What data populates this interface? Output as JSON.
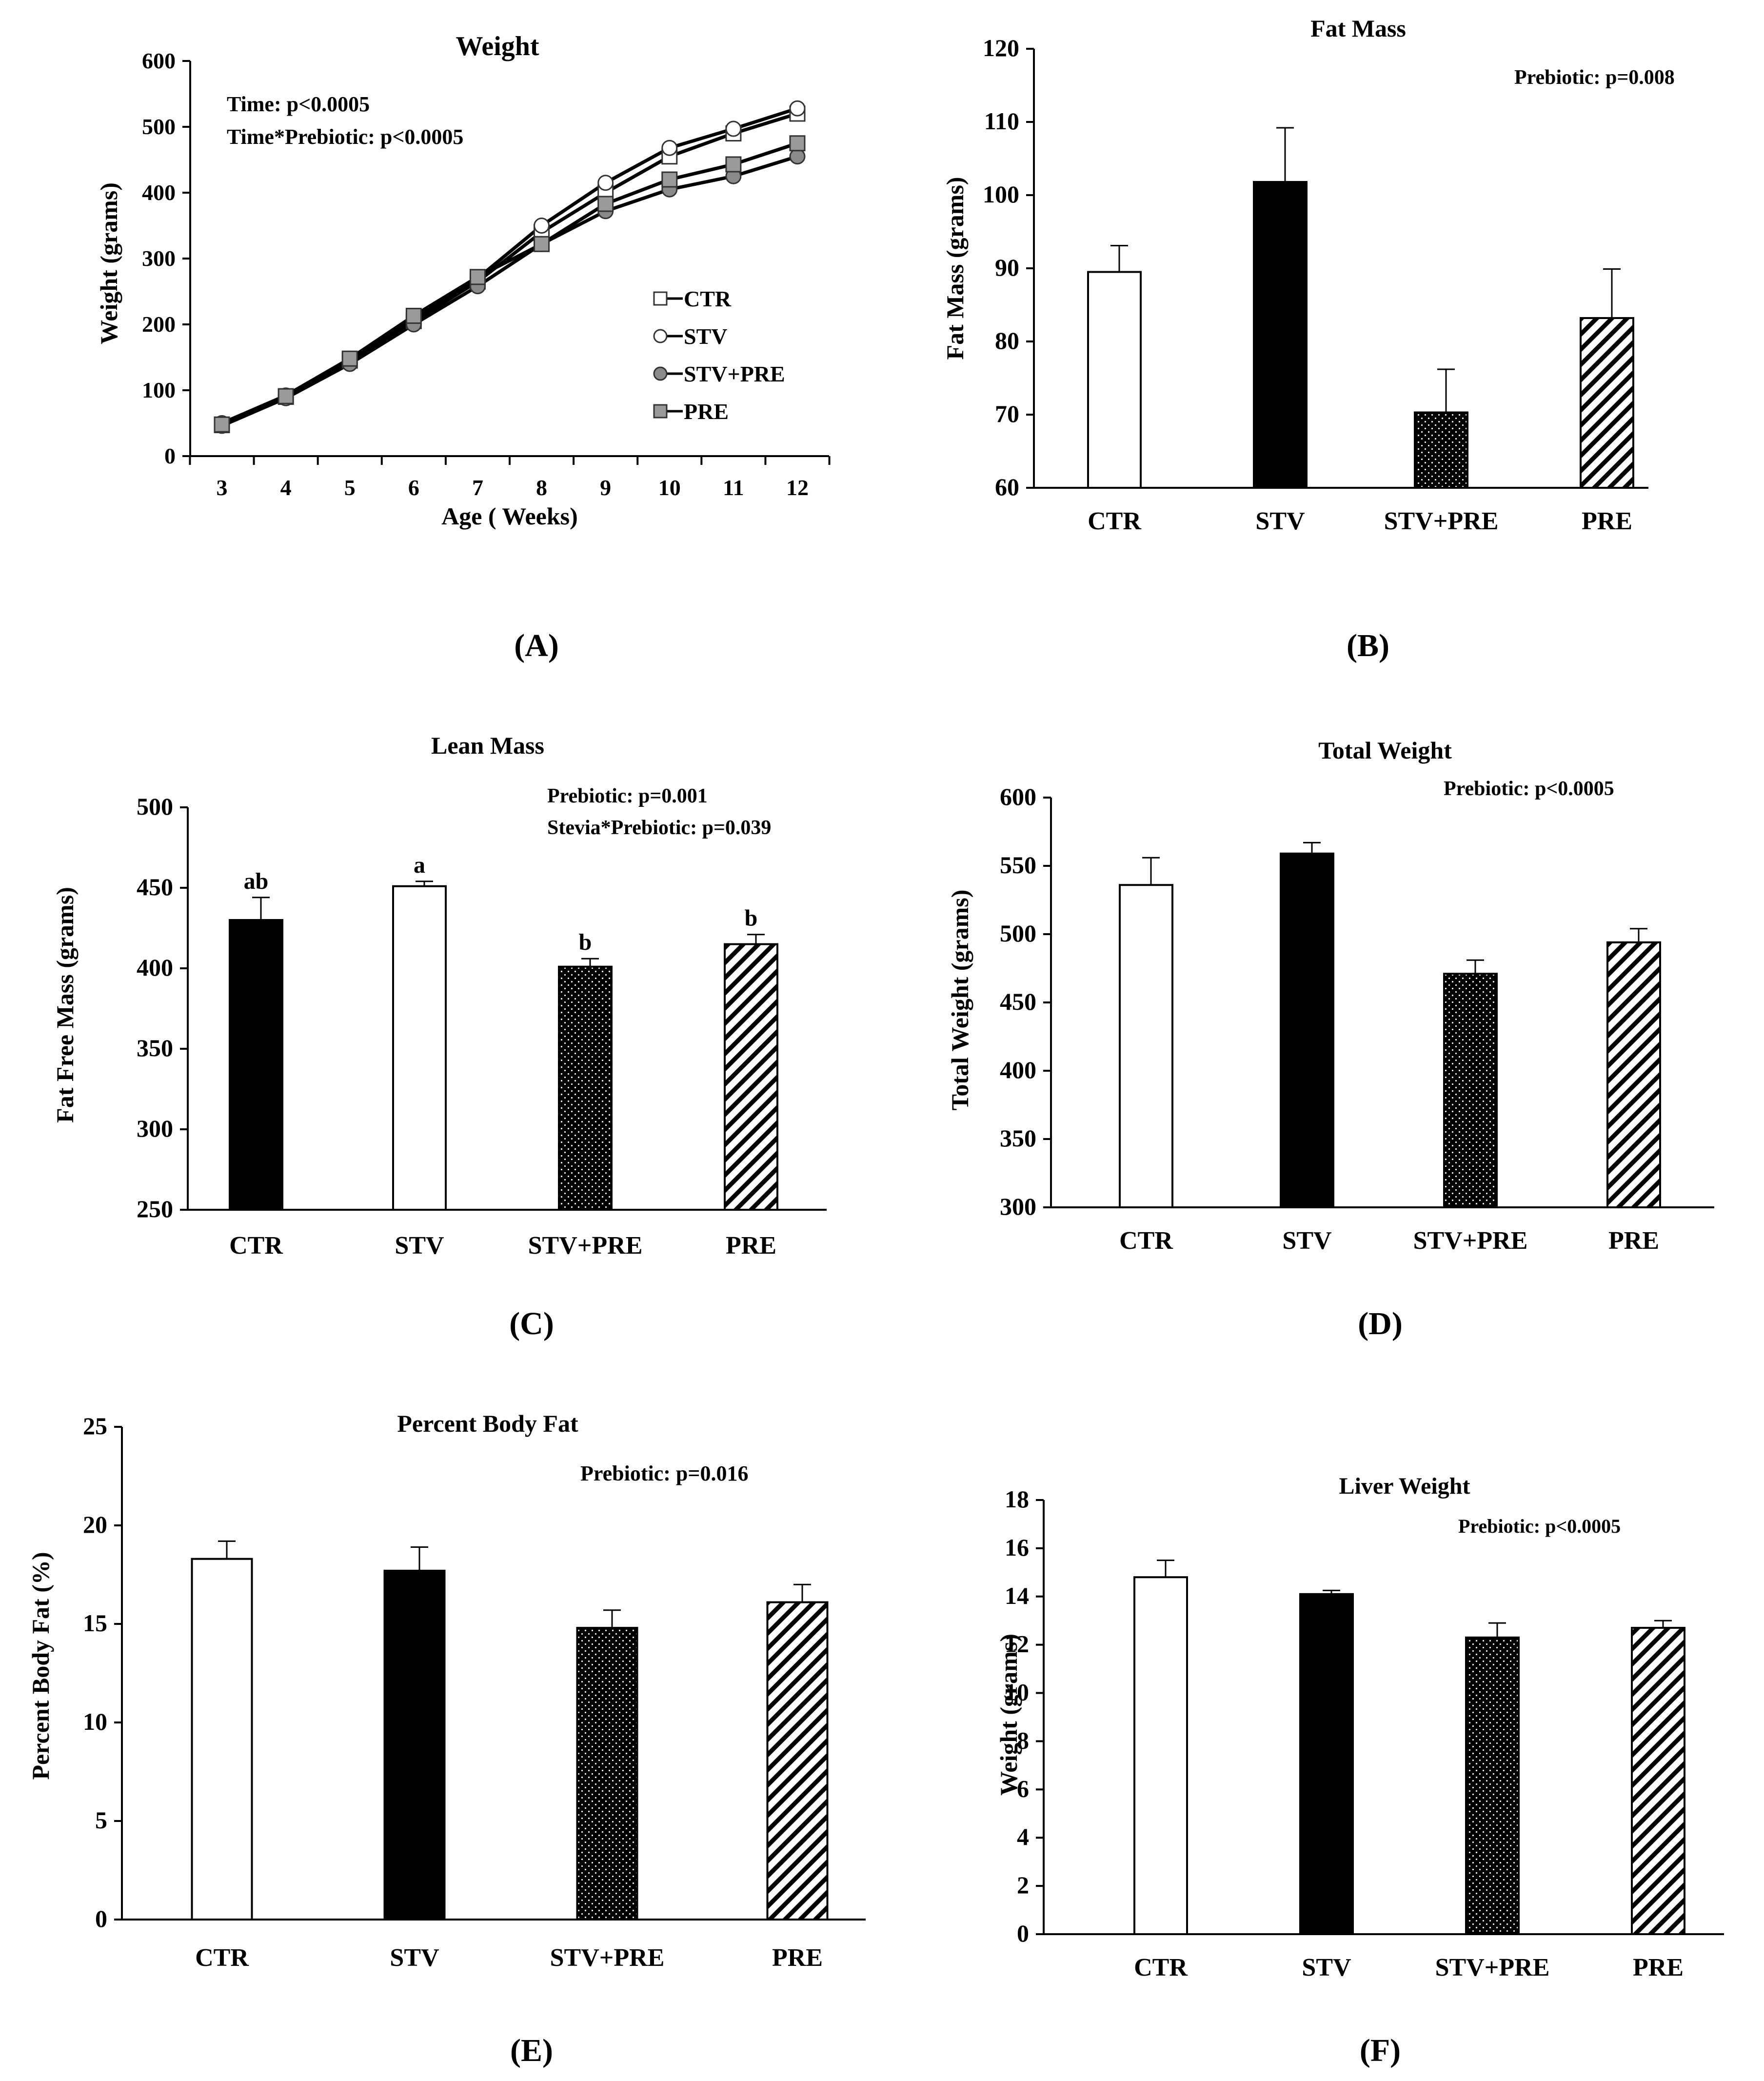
{
  "chart_data": [
    {
      "id": "A",
      "type": "line",
      "title": "Weight",
      "xlabel": "Age ( Weeks)",
      "ylabel": "Weight (grams)",
      "ylim": [
        0,
        600
      ],
      "yticks": [
        0,
        100,
        200,
        300,
        400,
        500,
        600
      ],
      "x": [
        3,
        4,
        5,
        6,
        7,
        8,
        9,
        10,
        11,
        12
      ],
      "annotations": [
        "Time: p<0.0005",
        "Time*Prebiotic: p<0.0005"
      ],
      "series": [
        {
          "name": "CTR",
          "marker": "square-open",
          "values": [
            47,
            90,
            145,
            205,
            265,
            340,
            400,
            455,
            490,
            520
          ]
        },
        {
          "name": "STV",
          "marker": "circle-open",
          "values": [
            50,
            92,
            148,
            210,
            270,
            350,
            415,
            468,
            497,
            528
          ]
        },
        {
          "name": "STV+PRE",
          "marker": "circle-filled",
          "values": [
            46,
            88,
            140,
            200,
            258,
            322,
            372,
            405,
            425,
            455
          ]
        },
        {
          "name": "PRE",
          "marker": "square-filled",
          "values": [
            48,
            91,
            148,
            213,
            272,
            322,
            383,
            420,
            443,
            475
          ]
        }
      ],
      "panel_label": "(A)"
    },
    {
      "id": "B",
      "type": "bar",
      "title": "Fat Mass",
      "ylabel": "Fat Mass (grams)",
      "ylim": [
        60,
        120
      ],
      "yticks": [
        60,
        70,
        80,
        90,
        100,
        110,
        120
      ],
      "categories": [
        "CTR",
        "STV",
        "STV+PRE",
        "PRE"
      ],
      "values": [
        89.5,
        101.8,
        70.3,
        83.2
      ],
      "errors": [
        3.6,
        7.4,
        5.9,
        6.7
      ],
      "fills": [
        "white",
        "black",
        "dots",
        "hatch"
      ],
      "letters": [
        "",
        "",
        "",
        ""
      ],
      "annotations": [
        "Prebiotic: p=0.008"
      ],
      "panel_label": "(B)"
    },
    {
      "id": "C",
      "type": "bar",
      "title": "Lean Mass",
      "ylabel": "Fat Free Mass (grams)",
      "ylim": [
        250,
        500
      ],
      "yticks": [
        250,
        300,
        350,
        400,
        450,
        500
      ],
      "categories": [
        "CTR",
        "STV",
        "STV+PRE",
        "PRE"
      ],
      "values": [
        430,
        451,
        401,
        415
      ],
      "errors": [
        14,
        3,
        5,
        6
      ],
      "fills": [
        "black",
        "white",
        "dots",
        "hatch"
      ],
      "letters": [
        "ab",
        "a",
        "b",
        "b"
      ],
      "annotations": [
        "Prebiotic: p=0.001",
        "Stevia*Prebiotic: p=0.039"
      ],
      "panel_label": "(C)"
    },
    {
      "id": "D",
      "type": "bar",
      "title": "Total Weight",
      "ylabel": "Total Weight (grams)",
      "ylim": [
        300,
        600
      ],
      "yticks": [
        300,
        350,
        400,
        450,
        500,
        550,
        600
      ],
      "categories": [
        "CTR",
        "STV",
        "STV+PRE",
        "PRE"
      ],
      "values": [
        536,
        559,
        471,
        494
      ],
      "errors": [
        20,
        8,
        10,
        10
      ],
      "fills": [
        "white",
        "black",
        "dots",
        "hatch"
      ],
      "letters": [
        "",
        "",
        "",
        ""
      ],
      "annotations": [
        "Prebiotic: p<0.0005"
      ],
      "panel_label": "(D)"
    },
    {
      "id": "E",
      "type": "bar",
      "title": "Percent Body Fat",
      "ylabel": "Percent Body Fat (%)",
      "ylim": [
        0,
        25
      ],
      "yticks": [
        0,
        5,
        10,
        15,
        20,
        25
      ],
      "categories": [
        "CTR",
        "STV",
        "STV+PRE",
        "PRE"
      ],
      "values": [
        18.3,
        17.7,
        14.8,
        16.1
      ],
      "errors": [
        0.9,
        1.2,
        0.9,
        0.9
      ],
      "fills": [
        "white",
        "black",
        "dots",
        "hatch"
      ],
      "letters": [
        "",
        "",
        "",
        ""
      ],
      "annotations": [
        "Prebiotic: p=0.016"
      ],
      "panel_label": "(E)"
    },
    {
      "id": "F",
      "type": "bar",
      "title": "Liver Weight",
      "ylabel": "Weight (grams)",
      "ylim": [
        0,
        18
      ],
      "yticks": [
        0,
        2,
        4,
        6,
        8,
        10,
        12,
        14,
        16,
        18
      ],
      "categories": [
        "CTR",
        "STV",
        "STV+PRE",
        "PRE"
      ],
      "values": [
        14.8,
        14.1,
        12.3,
        12.7
      ],
      "errors": [
        0.7,
        0.15,
        0.6,
        0.3
      ],
      "fills": [
        "white",
        "black",
        "dots",
        "hatch"
      ],
      "letters": [
        "",
        "",
        "",
        ""
      ],
      "annotations": [
        "Prebiotic: p<0.0005"
      ],
      "panel_label": "(F)"
    }
  ]
}
